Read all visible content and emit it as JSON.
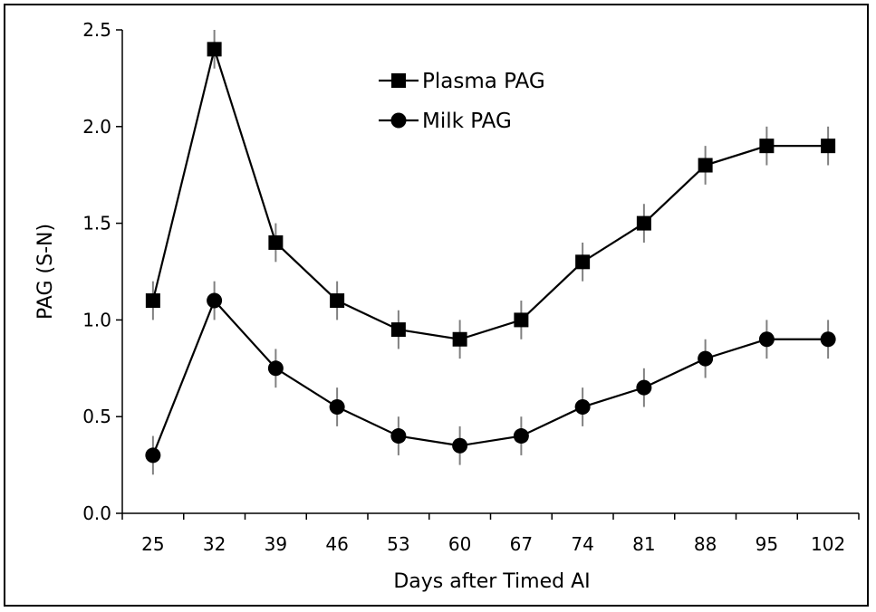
{
  "chart_data": {
    "type": "line",
    "xlabel": "Days after Timed AI",
    "ylabel": "PAG (S-N)",
    "categories": [
      "25",
      "32",
      "39",
      "46",
      "53",
      "60",
      "67",
      "74",
      "81",
      "88",
      "95",
      "102"
    ],
    "ylim": [
      0,
      2.5
    ],
    "yticks": [
      "0.0",
      "0.5",
      "1.0",
      "1.5",
      "2.0",
      "2.5"
    ],
    "legend_position": "top-center",
    "grid": false,
    "series": [
      {
        "name": "Plasma PAG",
        "marker": "square",
        "values": [
          1.1,
          2.4,
          1.4,
          1.1,
          0.95,
          0.9,
          1.0,
          1.3,
          1.5,
          1.8,
          1.9,
          1.9
        ],
        "error": [
          0.1,
          0.1,
          0.1,
          0.1,
          0.1,
          0.1,
          0.1,
          0.1,
          0.1,
          0.1,
          0.1,
          0.1
        ]
      },
      {
        "name": "Milk PAG",
        "marker": "circle",
        "values": [
          0.3,
          1.1,
          0.75,
          0.55,
          0.4,
          0.35,
          0.4,
          0.55,
          0.65,
          0.8,
          0.9,
          0.9
        ],
        "error": [
          0.1,
          0.1,
          0.1,
          0.1,
          0.1,
          0.1,
          0.1,
          0.1,
          0.1,
          0.1,
          0.1,
          0.1
        ]
      }
    ],
    "colors": {
      "line": "#000000",
      "errorbar": "#808080"
    }
  }
}
